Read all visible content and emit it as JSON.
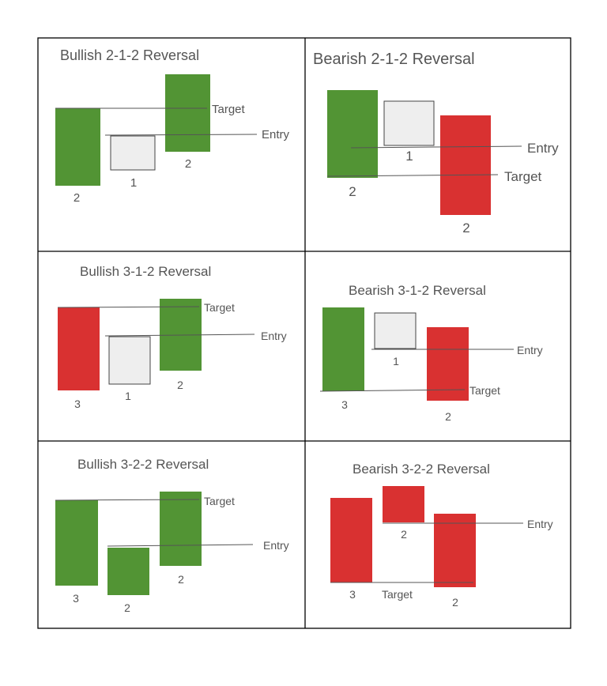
{
  "colors": {
    "green": "#529434",
    "red": "#d93131",
    "inside": "#eeeeee",
    "line": "#555555",
    "text": "#555555",
    "border": "#000000"
  },
  "panels": [
    {
      "title": "Bullish 2-1-2 Reversal",
      "candles": [
        {
          "label": "2",
          "color": "green"
        },
        {
          "label": "1",
          "color": "inside"
        },
        {
          "label": "2",
          "color": "green"
        }
      ],
      "target_label": "Target",
      "entry_label": "Entry"
    },
    {
      "title": "Bearish 2-1-2 Reversal",
      "candles": [
        {
          "label": "2",
          "color": "green"
        },
        {
          "label": "1",
          "color": "inside"
        },
        {
          "label": "2",
          "color": "red"
        }
      ],
      "target_label": "Target",
      "entry_label": "Entry"
    },
    {
      "title": "Bullish 3-1-2 Reversal",
      "candles": [
        {
          "label": "3",
          "color": "red"
        },
        {
          "label": "1",
          "color": "inside"
        },
        {
          "label": "2",
          "color": "green"
        }
      ],
      "target_label": "Target",
      "entry_label": "Entry"
    },
    {
      "title": "Bearish 3-1-2 Reversal",
      "candles": [
        {
          "label": "3",
          "color": "green"
        },
        {
          "label": "1",
          "color": "inside"
        },
        {
          "label": "2",
          "color": "red"
        }
      ],
      "target_label": "Target",
      "entry_label": "Entry"
    },
    {
      "title": "Bullish 3-2-2 Reversal",
      "candles": [
        {
          "label": "3",
          "color": "green"
        },
        {
          "label": "2",
          "color": "green"
        },
        {
          "label": "2",
          "color": "green"
        }
      ],
      "target_label": "Target",
      "entry_label": "Entry"
    },
    {
      "title": "Bearish 3-2-2 Reversal",
      "candles": [
        {
          "label": "3",
          "color": "red"
        },
        {
          "label": "2",
          "color": "red"
        },
        {
          "label": "2",
          "color": "red"
        }
      ],
      "target_label": "Target",
      "entry_label": "Entry"
    }
  ]
}
